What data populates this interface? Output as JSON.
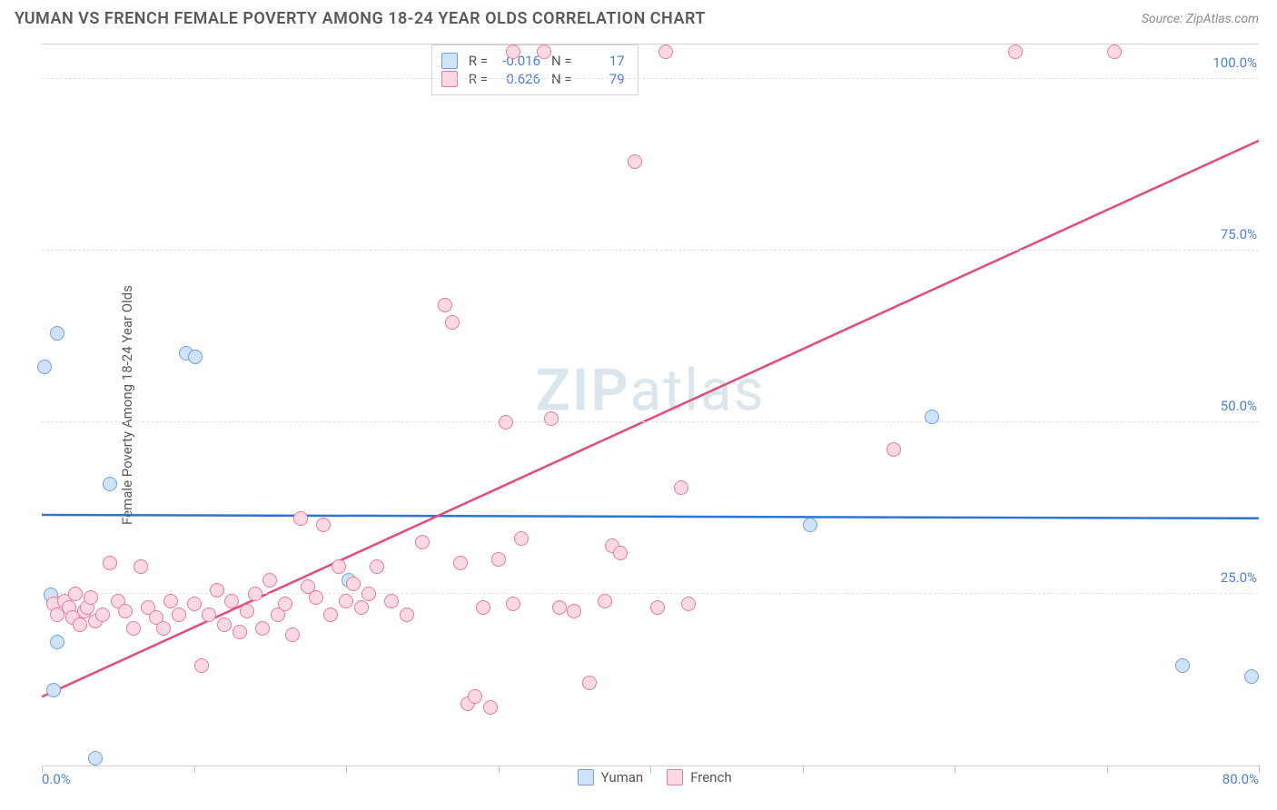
{
  "title": "YUMAN VS FRENCH FEMALE POVERTY AMONG 18-24 YEAR OLDS CORRELATION CHART",
  "source": "Source: ZipAtlas.com",
  "ylabel": "Female Poverty Among 18-24 Year Olds",
  "watermark": "ZIPatlas",
  "chart": {
    "type": "scatter",
    "background_color": "#ffffff",
    "grid_color": "#e3e3e3",
    "axis_label_color": "#4a7fd6",
    "xlim": [
      0,
      80
    ],
    "ylim": [
      0,
      105
    ],
    "x_ticks": [
      0,
      10,
      20,
      30,
      40,
      50,
      60,
      70,
      80
    ],
    "x_tick_labels": {
      "0": "0.0%",
      "80": "80.0%"
    },
    "y_gridlines": [
      25,
      50,
      75,
      100
    ],
    "y_tick_labels": {
      "25": "25.0%",
      "50": "50.0%",
      "75": "75.0%",
      "100": "100.0%"
    },
    "marker_size": 16,
    "series": [
      {
        "name": "Yuman",
        "fill_color": "#cfe2f7",
        "stroke_color": "#6ea2dd",
        "trend_color": "#2f74d0",
        "trend_width": 2.5,
        "R": "-0.016",
        "N": "17",
        "trend_y_start": 36.5,
        "trend_y_end": 36.0,
        "points": [
          [
            0.8,
            24.0
          ],
          [
            0.6,
            24.8
          ],
          [
            1.0,
            63.0
          ],
          [
            0.2,
            58.0
          ],
          [
            1.0,
            18.0
          ],
          [
            0.8,
            11.0
          ],
          [
            3.5,
            1.0
          ],
          [
            4.5,
            41.0
          ],
          [
            9.5,
            60.0
          ],
          [
            10.1,
            59.5
          ],
          [
            20.2,
            27.0
          ],
          [
            50.5,
            35.0
          ],
          [
            58.5,
            50.8
          ],
          [
            75.0,
            14.5
          ],
          [
            79.5,
            13.0
          ]
        ]
      },
      {
        "name": "French",
        "fill_color": "#fcd9e2",
        "stroke_color": "#e67a9e",
        "trend_color": "#e24a7a",
        "trend_width": 2.5,
        "R": "0.626",
        "N": "79",
        "trend_y_start": 10.0,
        "trend_y_end": 91.0,
        "points": [
          [
            0.8,
            23.5
          ],
          [
            1.0,
            22.0
          ],
          [
            1.5,
            24.0
          ],
          [
            1.8,
            23.0
          ],
          [
            2.0,
            21.5
          ],
          [
            2.2,
            25.0
          ],
          [
            2.5,
            20.5
          ],
          [
            2.8,
            22.5
          ],
          [
            3.0,
            23.0
          ],
          [
            3.2,
            24.5
          ],
          [
            3.5,
            21.0
          ],
          [
            4.0,
            22.0
          ],
          [
            4.5,
            29.5
          ],
          [
            5.0,
            24.0
          ],
          [
            5.5,
            22.5
          ],
          [
            6.0,
            20.0
          ],
          [
            6.5,
            29.0
          ],
          [
            7.0,
            23.0
          ],
          [
            7.5,
            21.5
          ],
          [
            8.0,
            20.0
          ],
          [
            8.5,
            24.0
          ],
          [
            9.0,
            22.0
          ],
          [
            10.0,
            23.5
          ],
          [
            10.5,
            14.5
          ],
          [
            11.0,
            22.0
          ],
          [
            11.5,
            25.5
          ],
          [
            12.0,
            20.5
          ],
          [
            12.5,
            24.0
          ],
          [
            13.0,
            19.5
          ],
          [
            13.5,
            22.5
          ],
          [
            14.0,
            25.0
          ],
          [
            14.5,
            20.0
          ],
          [
            15.0,
            27.0
          ],
          [
            15.5,
            22.0
          ],
          [
            16.0,
            23.5
          ],
          [
            16.5,
            19.0
          ],
          [
            17.0,
            36.0
          ],
          [
            17.5,
            26.0
          ],
          [
            18.0,
            24.5
          ],
          [
            18.5,
            35.0
          ],
          [
            19.0,
            22.0
          ],
          [
            19.5,
            29.0
          ],
          [
            20.0,
            24.0
          ],
          [
            20.5,
            26.5
          ],
          [
            21.0,
            23.0
          ],
          [
            21.5,
            25.0
          ],
          [
            22.0,
            29.0
          ],
          [
            23.0,
            24.0
          ],
          [
            24.0,
            22.0
          ],
          [
            25.0,
            32.5
          ],
          [
            26.5,
            67.0
          ],
          [
            27.0,
            64.5
          ],
          [
            27.5,
            29.5
          ],
          [
            28.0,
            9.0
          ],
          [
            28.5,
            10.0
          ],
          [
            29.0,
            23.0
          ],
          [
            29.5,
            8.5
          ],
          [
            30.0,
            30.0
          ],
          [
            30.5,
            50.0
          ],
          [
            31.0,
            23.5
          ],
          [
            31.0,
            104.0
          ],
          [
            31.5,
            33.0
          ],
          [
            33.0,
            104.0
          ],
          [
            33.5,
            50.5
          ],
          [
            34.0,
            23.0
          ],
          [
            35.0,
            22.5
          ],
          [
            36.0,
            12.0
          ],
          [
            37.0,
            24.0
          ],
          [
            37.5,
            32.0
          ],
          [
            38.0,
            31.0
          ],
          [
            39.0,
            88.0
          ],
          [
            40.5,
            23.0
          ],
          [
            41.0,
            104.0
          ],
          [
            42.0,
            40.5
          ],
          [
            42.5,
            23.5
          ],
          [
            56.0,
            46.0
          ],
          [
            64.0,
            104.0
          ],
          [
            70.5,
            104.0
          ]
        ]
      }
    ],
    "legend": {
      "items": [
        {
          "label": "Yuman",
          "fill": "#cfe2f7",
          "stroke": "#6ea2dd"
        },
        {
          "label": "French",
          "fill": "#fcd9e2",
          "stroke": "#e67a9e"
        }
      ]
    }
  }
}
